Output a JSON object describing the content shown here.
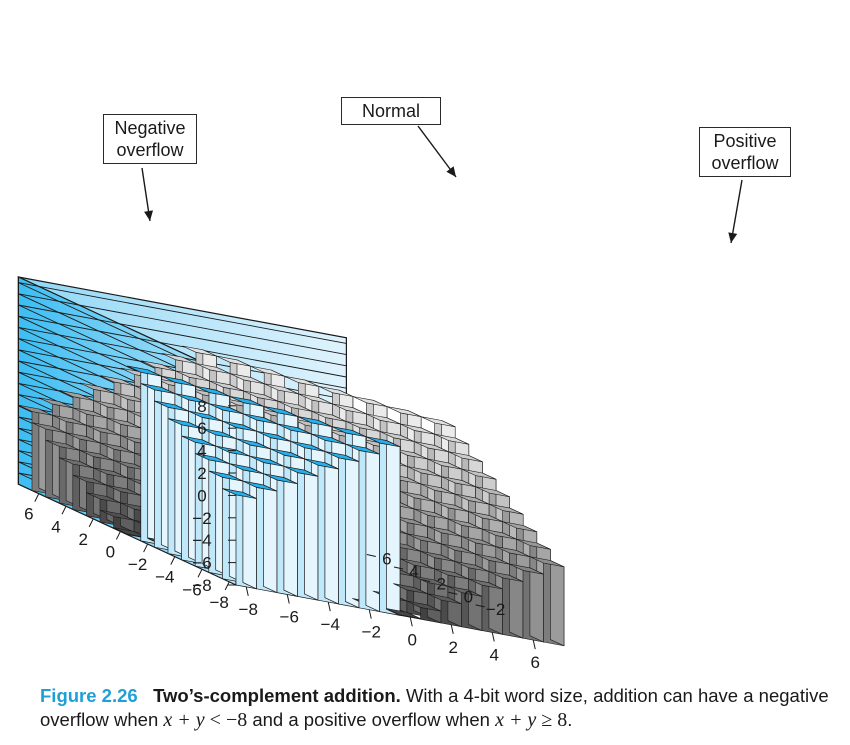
{
  "figure": {
    "number": "Figure 2.26",
    "title": "Two’s-complement addition.",
    "caption_parts": {
      "lead": "With a 4-bit word size, addition can have a negative overflow when ",
      "neg_lhs": "x + y",
      "neg_op": " < ",
      "neg_rhs": "−8",
      "middle": " and a positive overflow when ",
      "pos_lhs": "x + y",
      "pos_op": " ≥ ",
      "pos_rhs": "8",
      "end": "."
    }
  },
  "annotations": {
    "negative_overflow": [
      "Negative",
      "overflow"
    ],
    "normal": "Normal",
    "positive_overflow": [
      "Positive",
      "overflow"
    ]
  },
  "axes": {
    "z_ticks": [
      "8",
      "6",
      "4",
      "2",
      "0",
      "−2",
      "−4",
      "−6",
      "−8"
    ],
    "x_ticks": [
      "−8",
      "−6",
      "−4",
      "−2",
      "0",
      "2",
      "4",
      "6"
    ],
    "y_ticks": [
      "−8",
      "−6",
      "−4",
      "−2",
      "0",
      "2",
      "4",
      "6"
    ]
  },
  "chart_data": {
    "type": "bar3d",
    "x_range": [
      -8,
      7
    ],
    "y_range": [
      -8,
      7
    ],
    "z_range": [
      -8,
      8
    ],
    "function": "x + y",
    "regions": [
      {
        "label": "Negative overflow",
        "condition": "x + y < -8",
        "color": "#2fb8ee"
      },
      {
        "label": "Normal",
        "condition": "-8 <= x + y < 8",
        "color": "#9a9a9a"
      },
      {
        "label": "Positive overflow",
        "condition": "x + y >= 8",
        "color": "#2fb8ee"
      }
    ]
  },
  "colors": {
    "wall": "#66c8f2",
    "wall_line": "#1a1a1a",
    "blue_top": "#28aee8",
    "blue_side": "#e4f5fd",
    "blue_front": "#c0e8fb"
  }
}
